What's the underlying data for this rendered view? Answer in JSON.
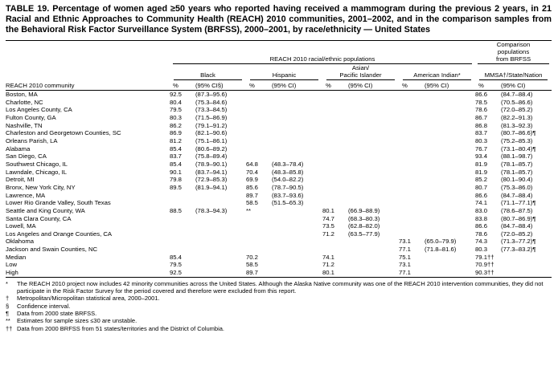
{
  "title": "TABLE 19. Percentage of women aged ≥50 years who reported having received a mammogram during the previous 2 years, in 21 Racial and Ethnic Approaches to Community Health (REACH) 2010 communities, 2001–2002, and in the comparison samples from the Behavioral Risk Factor Surveillance System (BRFSS), 2000–2001, by race/ethnicity — United States",
  "header": {
    "reach_group": "REACH 2010 racial/ethnic populations",
    "brfss_group": "Comparison\npopulations\nfrom BRFSS",
    "community_col": "REACH 2010 community",
    "groups": [
      {
        "name": "Black",
        "pct_label": "%",
        "ci_label": "(95% CI§)"
      },
      {
        "name": "Hispanic",
        "pct_label": "%",
        "ci_label": "(95% CI)"
      },
      {
        "name": "Asian/\nPacific Islander",
        "pct_label": "%",
        "ci_label": "(95% CI)"
      },
      {
        "name": "American Indian*",
        "pct_label": "%",
        "ci_label": "(95% CI)"
      },
      {
        "name": "MMSA†/State/Nation",
        "pct_label": "%",
        "ci_label": "(95% CI)"
      }
    ]
  },
  "rows": [
    [
      "Boston, MA",
      "92.5",
      "(87.3–95.6)",
      "",
      "",
      "",
      "",
      "",
      "",
      "86.6",
      "(84.7–88.4)"
    ],
    [
      "Charlotte, NC",
      "80.4",
      "(75.3–84.6)",
      "",
      "",
      "",
      "",
      "",
      "",
      "78.5",
      "(70.5–86.6)"
    ],
    [
      "Los Angeles County, CA",
      "79.5",
      "(73.3–84.5)",
      "",
      "",
      "",
      "",
      "",
      "",
      "78.6",
      "(72.0–85.2)"
    ],
    [
      "Fulton County, GA",
      "80.3",
      "(71.5–86.9)",
      "",
      "",
      "",
      "",
      "",
      "",
      "86.7",
      "(82.2–91.3)"
    ],
    [
      "Nashville, TN",
      "86.2",
      "(79.1–91.2)",
      "",
      "",
      "",
      "",
      "",
      "",
      "86.8",
      "(81.3–92.3)"
    ],
    [
      "Charleston and Georgetown Counties, SC",
      "86.9",
      "(82.1–90.6)",
      "",
      "",
      "",
      "",
      "",
      "",
      "83.7",
      "(80.7–86.6)¶"
    ],
    [
      "Orleans Parish, LA",
      "81.2",
      "(75.1–86.1)",
      "",
      "",
      "",
      "",
      "",
      "",
      "80.3",
      "(75.2–85.3)"
    ],
    [
      "Alabama",
      "85.4",
      "(80.6–89.2)",
      "",
      "",
      "",
      "",
      "",
      "",
      "76.7",
      "(73.1–80.4)¶"
    ],
    [
      "San Diego, CA",
      "83.7",
      "(75.8–89.4)",
      "",
      "",
      "",
      "",
      "",
      "",
      "93.4",
      "(88.1–98.7)"
    ],
    [
      "Southwest Chicago, IL",
      "85.4",
      "(78.9–90.1)",
      "64.8",
      "(48.3–78.4)",
      "",
      "",
      "",
      "",
      "81.9",
      "(78.1–85.7)"
    ],
    [
      "Lawndale, Chicago, IL",
      "90.1",
      "(83.7–94.1)",
      "70.4",
      "(48.3–85.8)",
      "",
      "",
      "",
      "",
      "81.9",
      "(78.1–85.7)"
    ],
    [
      "Detroit, MI",
      "79.8",
      "(72.9–85.3)",
      "69.9",
      "(54.0–82.2)",
      "",
      "",
      "",
      "",
      "85.2",
      "(80.1–90.4)"
    ],
    [
      "Bronx, New York City, NY",
      "89.5",
      "(81.9–94.1)",
      "85.6",
      "(78.7–90.5)",
      "",
      "",
      "",
      "",
      "80.7",
      "(75.3–86.0)"
    ],
    [
      "Lawrence, MA",
      "",
      "",
      "89.7",
      "(83.7–93.6)",
      "",
      "",
      "",
      "",
      "86.6",
      "(84.7–88.4)"
    ],
    [
      "Lower Rio Grande Valley, South Texas",
      "",
      "",
      "58.5",
      "(51.5–65.3)",
      "",
      "",
      "",
      "",
      "74.1",
      "(71.1–77.1)¶"
    ],
    [
      "Seattle and King County, WA",
      "88.5",
      "(78.3–94.3)",
      "**",
      "",
      "80.1",
      "(66.9–88.9)",
      "",
      "",
      "83.0",
      "(78.6–87.5)"
    ],
    [
      "Santa Clara County, CA",
      "",
      "",
      "",
      "",
      "74.7",
      "(68.3–80.3)",
      "",
      "",
      "83.8",
      "(80.7–86.9)¶"
    ],
    [
      "Lowell, MA",
      "",
      "",
      "",
      "",
      "73.5",
      "(62.8–82.0)",
      "",
      "",
      "86.6",
      "(84.7–88.4)"
    ],
    [
      "Los Angeles and Orange Counties, CA",
      "",
      "",
      "",
      "",
      "71.2",
      "(63.5–77.9)",
      "",
      "",
      "78.6",
      "(72.0–85.2)"
    ],
    [
      "Oklahoma",
      "",
      "",
      "",
      "",
      "",
      "",
      "73.1",
      "(65.0–79.9)",
      "74.3",
      "(71.3–77.2)¶"
    ],
    [
      "Jackson and Swain Counties, NC",
      "",
      "",
      "",
      "",
      "",
      "",
      "77.1",
      "(71.8–81.6)",
      "80.3",
      "(77.3–83.2)¶"
    ],
    [
      "Median",
      "85.4",
      "",
      "70.2",
      "",
      "74.1",
      "",
      "75.1",
      "",
      "79.1††",
      ""
    ],
    [
      "Low",
      "79.5",
      "",
      "58.5",
      "",
      "71.2",
      "",
      "73.1",
      "",
      "70.9††",
      ""
    ],
    [
      "High",
      "92.5",
      "",
      "89.7",
      "",
      "80.1",
      "",
      "77.1",
      "",
      "90.3††",
      ""
    ]
  ],
  "footnotes": [
    {
      "marker": "*",
      "text": "The REACH 2010 project now includes 42 minority communities across the United States. Although the Alaska Native community was one of the REACH 2010 intervention communities, they did not participate in the Risk Factor Survey for the period covered and therefore were excluded from this report."
    },
    {
      "marker": "†",
      "text": "Metropolitan/Micropolitan statistical area, 2000–2001."
    },
    {
      "marker": "§",
      "text": "Confidence interval."
    },
    {
      "marker": "¶",
      "text": "Data from 2000 state BRFSS."
    },
    {
      "marker": "**",
      "text": "Estimates for sample sizes ≤30 are unstable."
    },
    {
      "marker": "††",
      "text": "Data from 2000 BRFSS from 51 states/territories and the District of Columbia."
    }
  ]
}
